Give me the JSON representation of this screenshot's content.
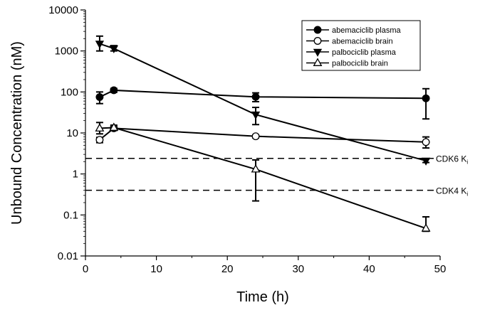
{
  "chart_data": {
    "type": "line",
    "xlabel": "Time (h)",
    "ylabel": "Unbound Concentration (nM)",
    "xlim": [
      0,
      50
    ],
    "ylim": [
      0.01,
      10000
    ],
    "yscale": "log",
    "grid": false,
    "legend_position": "top-right",
    "x_ticks": [
      "0",
      "10",
      "20",
      "30",
      "40",
      "50"
    ],
    "y_ticks": [
      "0.01",
      "0.1",
      "1",
      "10",
      "100",
      "1000",
      "10000"
    ],
    "series": [
      {
        "name": "abemaciclib plasma",
        "marker": "filled-circle",
        "points": [
          {
            "x": 2,
            "y": 75,
            "lo": 52,
            "hi": 100
          },
          {
            "x": 4,
            "y": 110,
            "lo": 98,
            "hi": 122
          },
          {
            "x": 24,
            "y": 76,
            "lo": 58,
            "hi": 95
          },
          {
            "x": 48,
            "y": 70,
            "lo": 22,
            "hi": 120
          }
        ]
      },
      {
        "name": "abemaciclib brain",
        "marker": "open-circle",
        "points": [
          {
            "x": 2,
            "y": 6.8,
            "lo": 5.8,
            "hi": 7.8
          },
          {
            "x": 4,
            "y": 13,
            "lo": 11.5,
            "hi": 14.5
          },
          {
            "x": 24,
            "y": 8.3,
            "lo": 7.6,
            "hi": 9.0
          },
          {
            "x": 48,
            "y": 6.0,
            "lo": 4.3,
            "hi": 8.0
          }
        ]
      },
      {
        "name": "palbociclib plasma",
        "marker": "filled-triangle-down",
        "points": [
          {
            "x": 2,
            "y": 1500,
            "lo": 1000,
            "hi": 2300
          },
          {
            "x": 4,
            "y": 1150,
            "lo": 1000,
            "hi": 1350
          },
          {
            "x": 24,
            "y": 28,
            "lo": 16,
            "hi": 42
          },
          {
            "x": 48,
            "y": 2.1,
            "lo": 1.9,
            "hi": 2.3
          }
        ]
      },
      {
        "name": "palbociclib brain",
        "marker": "open-triangle-up",
        "points": [
          {
            "x": 2,
            "y": 13,
            "lo": 9.5,
            "hi": 18
          },
          {
            "x": 4,
            "y": 13.5,
            "lo": 11.5,
            "hi": 15.5
          },
          {
            "x": 24,
            "y": 1.3,
            "lo": 0.22,
            "hi": 2.2
          },
          {
            "x": 48,
            "y": 0.047,
            "lo": 0.04,
            "hi": 0.09
          }
        ]
      }
    ],
    "reference_lines": [
      {
        "y": 2.4,
        "label": "CDK6 K",
        "subscript": "i"
      },
      {
        "y": 0.4,
        "label": "CDK4 K",
        "subscript": "i"
      }
    ]
  }
}
